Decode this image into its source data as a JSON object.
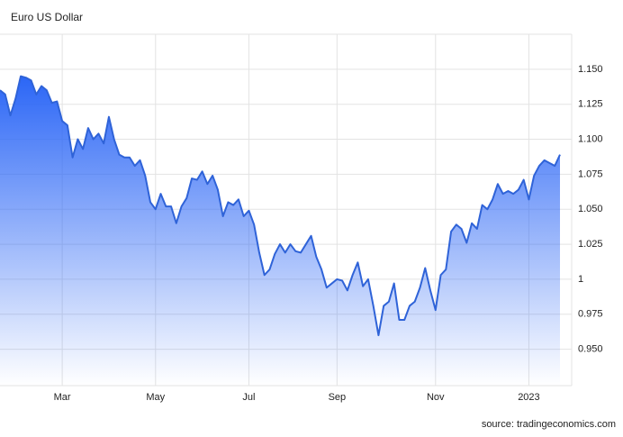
{
  "chart_data": {
    "type": "area",
    "title": "Euro US Dollar",
    "source": "source: tradingeconomics.com",
    "categories": [
      null,
      null,
      null,
      null,
      null,
      null,
      null,
      null,
      null,
      null,
      null,
      null,
      "Mar",
      null,
      null,
      null,
      null,
      null,
      null,
      null,
      null,
      null,
      null,
      null,
      null,
      null,
      null,
      null,
      null,
      null,
      "May",
      null,
      null,
      null,
      null,
      null,
      null,
      null,
      null,
      null,
      null,
      null,
      null,
      null,
      null,
      null,
      null,
      null,
      "Jul",
      null,
      null,
      null,
      null,
      null,
      null,
      null,
      null,
      null,
      null,
      null,
      null,
      null,
      null,
      null,
      null,
      "Sep",
      null,
      null,
      null,
      null,
      null,
      null,
      null,
      null,
      null,
      null,
      null,
      null,
      null,
      null,
      null,
      null,
      null,
      null,
      "Nov",
      null,
      null,
      null,
      null,
      null,
      null,
      null,
      null,
      null,
      null,
      null,
      null,
      null,
      null,
      null,
      null,
      null,
      "2023",
      null,
      null,
      null,
      null,
      null,
      null
    ],
    "series": [
      {
        "color": "#2f63d8",
        "values": [
          1.135,
          1.132,
          1.117,
          1.129,
          1.145,
          1.144,
          1.142,
          1.132,
          1.138,
          1.135,
          1.126,
          1.127,
          1.113,
          1.11,
          1.087,
          1.1,
          1.093,
          1.108,
          1.1,
          1.104,
          1.097,
          1.116,
          1.1,
          1.089,
          1.087,
          1.087,
          1.081,
          1.085,
          1.074,
          1.055,
          1.05,
          1.061,
          1.052,
          1.052,
          1.04,
          1.052,
          1.058,
          1.072,
          1.071,
          1.077,
          1.068,
          1.074,
          1.064,
          1.045,
          1.055,
          1.053,
          1.057,
          1.045,
          1.049,
          1.039,
          1.019,
          1.003,
          1.007,
          1.018,
          1.025,
          1.019,
          1.025,
          1.02,
          1.019,
          1.025,
          1.031,
          1.016,
          1.007,
          0.994,
          0.997,
          1.0,
          0.999,
          0.992,
          1.003,
          1.012,
          0.995,
          1.0,
          0.981,
          0.96,
          0.981,
          0.984,
          0.997,
          0.971,
          0.971,
          0.981,
          0.984,
          0.994,
          1.008,
          0.992,
          0.978,
          1.003,
          1.007,
          1.034,
          1.039,
          1.036,
          1.026,
          1.04,
          1.036,
          1.053,
          1.05,
          1.057,
          1.068,
          1.061,
          1.063,
          1.061,
          1.064,
          1.071,
          1.057,
          1.074,
          1.081,
          1.085,
          1.083,
          1.081,
          1.089
        ]
      }
    ],
    "ylim": [
      0.924,
      1.175
    ],
    "yticks": [
      {
        "value": 0.95,
        "label": "0.950"
      },
      0.975,
      1,
      1.025,
      {
        "value": 1.05,
        "label": "1.050"
      },
      1.075,
      {
        "value": 1.1,
        "label": "1.100"
      },
      1.125,
      {
        "value": 1.15,
        "label": "1.150"
      }
    ],
    "grid": true
  }
}
